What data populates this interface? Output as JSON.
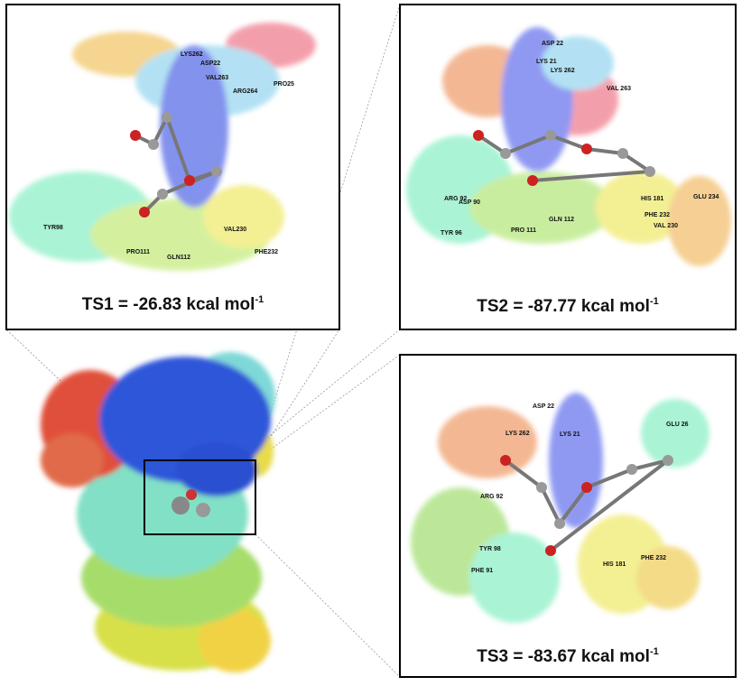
{
  "panels": [
    {
      "caption": "TS1 = -26.83 kcal mol",
      "exponent": "-1",
      "residues": [
        "LYS262",
        "ASP22",
        "VAL263",
        "ARG264",
        "PRO25",
        "TYR98",
        "PRO111",
        "GLN112",
        "VAL230",
        "PHE232"
      ]
    },
    {
      "caption": "TS2 = -87.77 kcal mol",
      "exponent": "-1",
      "residues": [
        "ASP 22",
        "LYS 21",
        "LYS 262",
        "VAL 263",
        "ARG 92",
        "ASP 90",
        "TYR 96",
        "PRO 111",
        "GLN 112",
        "HIS 181",
        "PHE 232",
        "VAL 230",
        "GLU 234"
      ]
    },
    {
      "caption": "TS3 = -83.67 kcal mol",
      "exponent": "-1",
      "residues": [
        "ASP 22",
        "GLU 26",
        "LYS 262",
        "LYS 21",
        "ARG 92",
        "TYR 98",
        "PHE 91",
        "HIS 181",
        "PHE 232"
      ]
    }
  ]
}
